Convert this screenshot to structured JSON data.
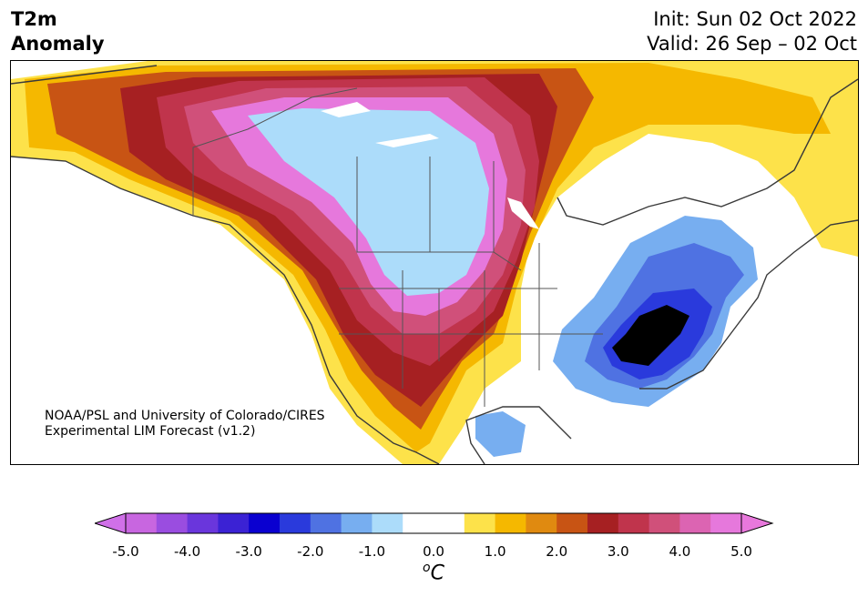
{
  "header": {
    "variable": "T2m",
    "subtitle": "Anomaly",
    "init": "Init: Sun 02 Oct 2022",
    "valid": "Valid: 26 Sep – 02 Oct"
  },
  "credit": {
    "line1": "NOAA/PSL and University of Colorado/CIRES",
    "line2": "Experimental LIM Forecast (v1.2)"
  },
  "colorbar": {
    "units_super": "o",
    "units_letter": "C",
    "ticks": [
      "-5.0",
      "-4.0",
      "-3.0",
      "-2.0",
      "-1.0",
      "0.0",
      "1.0",
      "2.0",
      "3.0",
      "4.0",
      "5.0"
    ],
    "colors": [
      "#c866e0",
      "#9a4de0",
      "#6a36dc",
      "#3b22d4",
      "#0a00d0",
      "#2a3adc",
      "#4f72e2",
      "#77aef0",
      "#acdcfa",
      "#ffffff",
      "#ffffff",
      "#fde24a",
      "#f5b800",
      "#e08a10",
      "#c85414",
      "#a62022",
      "#c0344c",
      "#d0507a",
      "#dc64b2",
      "#e678dc"
    ],
    "under_color": "#d070e8",
    "over_color": "#e878dc"
  },
  "map": {
    "regions": [
      {
        "name": "positive-2",
        "color": "#f5b800"
      },
      {
        "name": "positive-3",
        "color": "#e08a10"
      },
      {
        "name": "positive-4",
        "color": "#c85414"
      },
      {
        "name": "positive-5",
        "color": "#a62022"
      },
      {
        "name": "positive-6",
        "color": "#c0344c"
      },
      {
        "name": "positive-7",
        "color": "#d0507a"
      },
      {
        "name": "positive-9",
        "color": "#e678dc"
      },
      {
        "name": "negative-1",
        "color": "#acdcfa"
      },
      {
        "name": "negative-2",
        "color": "#77aef0"
      },
      {
        "name": "negative-3",
        "color": "#4f72e2"
      },
      {
        "name": "negative-4",
        "color": "#2a3adc"
      }
    ]
  }
}
